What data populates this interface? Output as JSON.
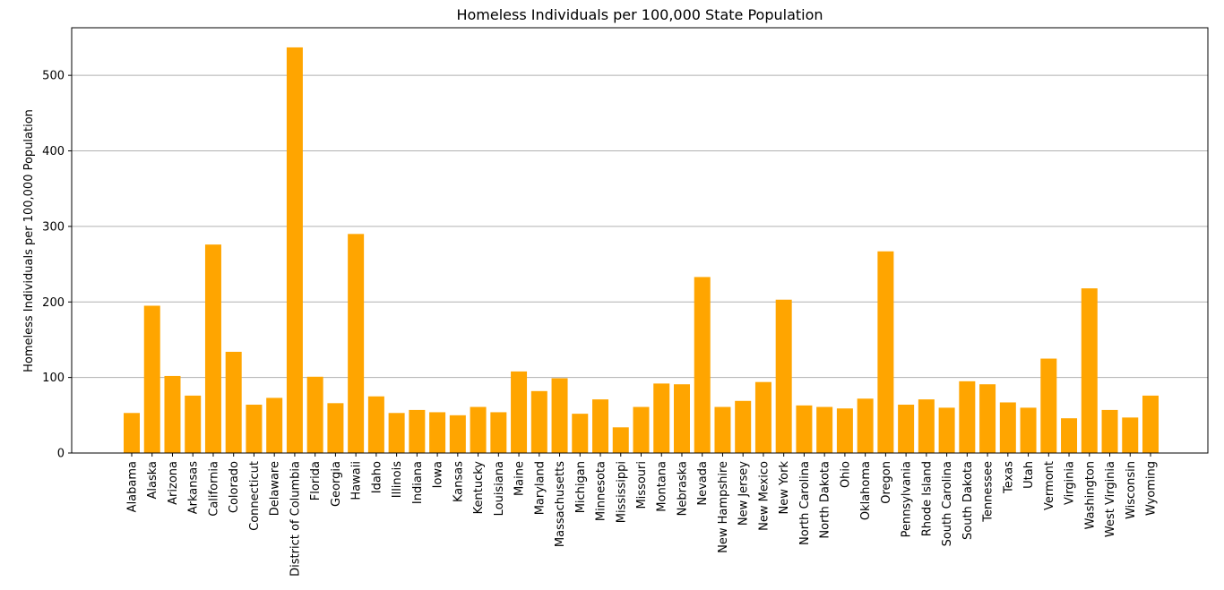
{
  "chart_data": {
    "type": "bar",
    "title": "Homeless Individuals per 100,000 State Population",
    "xlabel": "",
    "ylabel": "Homeless Individuals per 100,000 Population",
    "ylim": [
      0,
      563
    ],
    "yticks": [
      0,
      100,
      200,
      300,
      400,
      500
    ],
    "grid": "y",
    "bar_color": "#ffa500",
    "categories": [
      "Alabama",
      "Alaska",
      "Arizona",
      "Arkansas",
      "California",
      "Colorado",
      "Connecticut",
      "Delaware",
      "District of Columbia",
      "Florida",
      "Georgia",
      "Hawaii",
      "Idaho",
      "Illinois",
      "Indiana",
      "Iowa",
      "Kansas",
      "Kentucky",
      "Louisiana",
      "Maine",
      "Maryland",
      "Massachusetts",
      "Michigan",
      "Minnesota",
      "Mississippi",
      "Missouri",
      "Montana",
      "Nebraska",
      "Nevada",
      "New Hampshire",
      "New Jersey",
      "New Mexico",
      "New York",
      "North Carolina",
      "North Dakota",
      "Ohio",
      "Oklahoma",
      "Oregon",
      "Pennsylvania",
      "Rhode Island",
      "South Carolina",
      "South Dakota",
      "Tennessee",
      "Texas",
      "Utah",
      "Vermont",
      "Virginia",
      "Washington",
      "West Virginia",
      "Wisconsin",
      "Wyoming"
    ],
    "values": [
      53,
      195,
      102,
      76,
      276,
      134,
      64,
      73,
      537,
      101,
      66,
      290,
      75,
      53,
      57,
      54,
      50,
      61,
      54,
      108,
      82,
      99,
      52,
      71,
      34,
      61,
      92,
      91,
      233,
      61,
      69,
      94,
      203,
      63,
      61,
      59,
      72,
      267,
      64,
      71,
      60,
      95,
      91,
      67,
      60,
      125,
      46,
      218,
      57,
      47,
      76
    ]
  }
}
